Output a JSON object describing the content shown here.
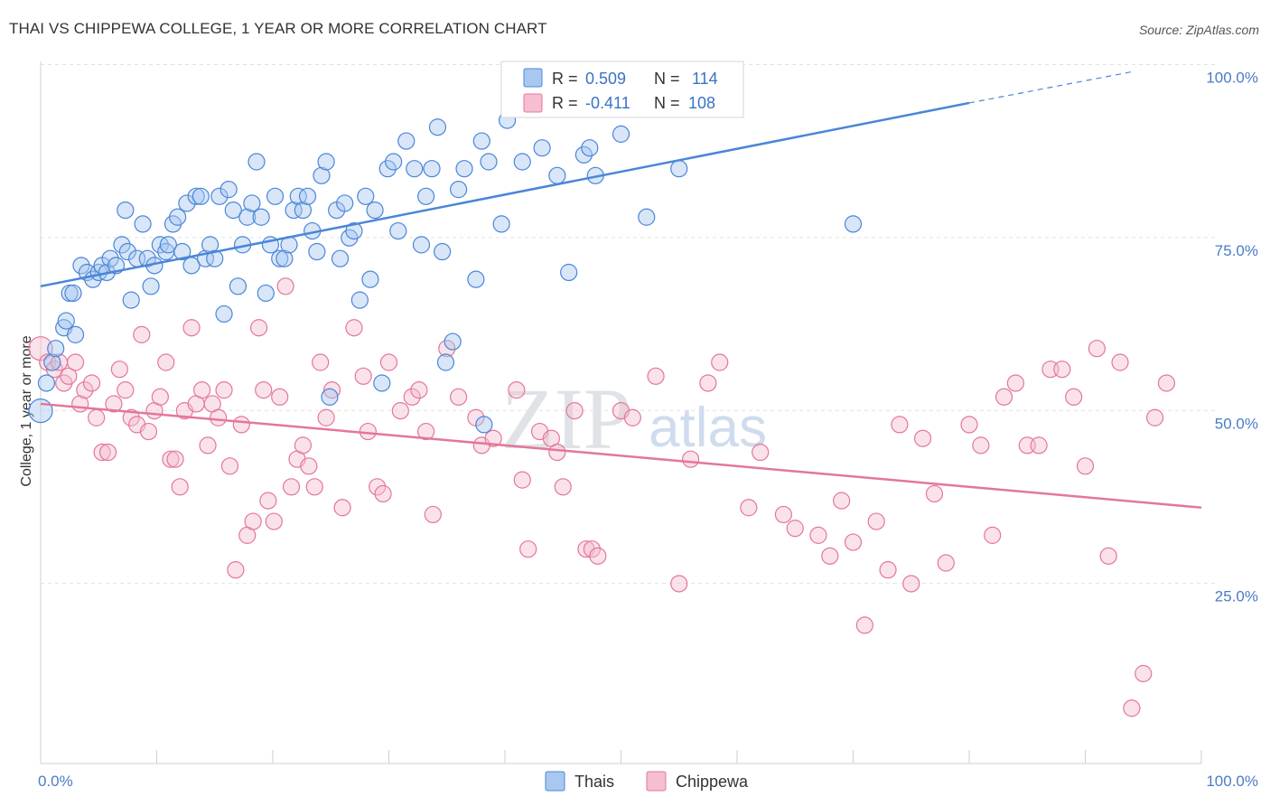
{
  "title": "THAI VS CHIPPEWA COLLEGE, 1 YEAR OR MORE CORRELATION CHART",
  "source": "Source: ZipAtlas.com",
  "watermark": {
    "zip": "ZIP",
    "atlas": "atlas"
  },
  "colors": {
    "thais": "#4a86d8",
    "thais_fill": "#a9c8ef",
    "chippewa": "#e4769b",
    "chippewa_fill": "#f5bfd1",
    "tick": "#4a7cc7"
  },
  "legend": {
    "rows": [
      {
        "r_label": "R =",
        "r_value": "0.509",
        "n_label": "N =",
        "n_value": "114"
      },
      {
        "r_label": "R =",
        "r_value": "-0.411",
        "n_label": "N =",
        "n_value": "108"
      }
    ]
  },
  "chart_data": {
    "type": "scatter",
    "ylabel": "College, 1 year or more",
    "x_tick_labels": [
      "0.0%",
      "100.0%"
    ],
    "y_tick_labels": [
      "100.0%",
      "75.0%",
      "50.0%",
      "25.0%"
    ],
    "xlim": [
      0,
      100
    ],
    "ylim": [
      0,
      100
    ],
    "grid": true,
    "legend_placement": "top-center",
    "series": [
      {
        "name": "Thais",
        "trend": {
          "x0": 0,
          "y0": 69.0,
          "x1": 80,
          "y1": 95.5,
          "dashed_to": 94,
          "dashed_y": 100
        },
        "points": [
          [
            0,
            51
          ],
          [
            0.5,
            55
          ],
          [
            1,
            58
          ],
          [
            1.3,
            60
          ],
          [
            2,
            63
          ],
          [
            2.2,
            64
          ],
          [
            3,
            62
          ],
          [
            2.5,
            68
          ],
          [
            2.8,
            68
          ],
          [
            3.5,
            72
          ],
          [
            4,
            71
          ],
          [
            4.5,
            70
          ],
          [
            5,
            71
          ],
          [
            5.3,
            72
          ],
          [
            5.7,
            71
          ],
          [
            6,
            73
          ],
          [
            6.5,
            72
          ],
          [
            7,
            75
          ],
          [
            7.5,
            74
          ],
          [
            7.3,
            80
          ],
          [
            7.8,
            67
          ],
          [
            8.3,
            73
          ],
          [
            8.8,
            78
          ],
          [
            9.2,
            73
          ],
          [
            9.5,
            69
          ],
          [
            9.8,
            72
          ],
          [
            10.3,
            75
          ],
          [
            10.8,
            74
          ],
          [
            11,
            75
          ],
          [
            11.4,
            78
          ],
          [
            11.8,
            79
          ],
          [
            12.2,
            74
          ],
          [
            12.6,
            81
          ],
          [
            13,
            72
          ],
          [
            13.4,
            82
          ],
          [
            13.8,
            82
          ],
          [
            14.2,
            73
          ],
          [
            14.6,
            75
          ],
          [
            15,
            73
          ],
          [
            15.4,
            82
          ],
          [
            15.8,
            65
          ],
          [
            16.2,
            83
          ],
          [
            16.6,
            80
          ],
          [
            17,
            69
          ],
          [
            17.4,
            75
          ],
          [
            17.8,
            79
          ],
          [
            18.2,
            81
          ],
          [
            18.6,
            87
          ],
          [
            19,
            79
          ],
          [
            19.4,
            68
          ],
          [
            19.8,
            75
          ],
          [
            20.2,
            82
          ],
          [
            20.6,
            73
          ],
          [
            21,
            73
          ],
          [
            21.4,
            75
          ],
          [
            21.8,
            80
          ],
          [
            22.2,
            82
          ],
          [
            22.6,
            80
          ],
          [
            23,
            82
          ],
          [
            23.4,
            77
          ],
          [
            23.8,
            74
          ],
          [
            24.2,
            85
          ],
          [
            24.6,
            87
          ],
          [
            24.9,
            53
          ],
          [
            25.5,
            80
          ],
          [
            25.8,
            73
          ],
          [
            26.2,
            81
          ],
          [
            26.6,
            76
          ],
          [
            27,
            77
          ],
          [
            27.5,
            67
          ],
          [
            28,
            82
          ],
          [
            28.4,
            70
          ],
          [
            28.8,
            80
          ],
          [
            29.4,
            55
          ],
          [
            29.9,
            86
          ],
          [
            30.4,
            87
          ],
          [
            30.8,
            77
          ],
          [
            31.5,
            90
          ],
          [
            32.2,
            86
          ],
          [
            32.8,
            75
          ],
          [
            33.2,
            82
          ],
          [
            33.7,
            86
          ],
          [
            34.2,
            92
          ],
          [
            34.6,
            74
          ],
          [
            34.9,
            58
          ],
          [
            35.5,
            61
          ],
          [
            36,
            83
          ],
          [
            36.5,
            86
          ],
          [
            37.5,
            70
          ],
          [
            38,
            90
          ],
          [
            38.2,
            49
          ],
          [
            38.6,
            87
          ],
          [
            39.7,
            78
          ],
          [
            40.2,
            93
          ],
          [
            41.5,
            87
          ],
          [
            43.2,
            89
          ],
          [
            44.5,
            85
          ],
          [
            45.5,
            71
          ],
          [
            46.8,
            88
          ],
          [
            47.3,
            89
          ],
          [
            47.8,
            85
          ],
          [
            50,
            91
          ],
          [
            51,
            100
          ],
          [
            52.2,
            79
          ],
          [
            55,
            86
          ],
          [
            70,
            78
          ]
        ]
      },
      {
        "name": "Chippewa",
        "trend": {
          "x0": 0,
          "y0": 52.0,
          "x1": 100,
          "y1": 37.0
        },
        "points": [
          [
            0,
            60
          ],
          [
            0.6,
            58
          ],
          [
            1.2,
            57
          ],
          [
            1.6,
            58
          ],
          [
            2,
            55
          ],
          [
            2.4,
            56
          ],
          [
            3,
            58
          ],
          [
            3.4,
            52
          ],
          [
            3.8,
            54
          ],
          [
            4.4,
            55
          ],
          [
            4.8,
            50
          ],
          [
            5.3,
            45
          ],
          [
            5.8,
            45
          ],
          [
            6.3,
            52
          ],
          [
            6.8,
            57
          ],
          [
            7.3,
            54
          ],
          [
            7.8,
            50
          ],
          [
            8.3,
            49
          ],
          [
            8.7,
            62
          ],
          [
            9.3,
            48
          ],
          [
            9.8,
            51
          ],
          [
            10.3,
            53
          ],
          [
            10.8,
            58
          ],
          [
            11.2,
            44
          ],
          [
            11.6,
            44
          ],
          [
            12,
            40
          ],
          [
            12.4,
            51
          ],
          [
            13,
            63
          ],
          [
            13.4,
            52
          ],
          [
            13.9,
            54
          ],
          [
            14.4,
            46
          ],
          [
            14.8,
            52
          ],
          [
            15.3,
            50
          ],
          [
            15.8,
            54
          ],
          [
            16.3,
            43
          ],
          [
            16.8,
            28
          ],
          [
            17.3,
            49
          ],
          [
            17.8,
            33
          ],
          [
            18.3,
            35
          ],
          [
            18.8,
            63
          ],
          [
            19.2,
            54
          ],
          [
            19.6,
            38
          ],
          [
            20.1,
            35
          ],
          [
            20.6,
            53
          ],
          [
            21.1,
            69
          ],
          [
            21.6,
            40
          ],
          [
            22.1,
            44
          ],
          [
            22.6,
            46
          ],
          [
            23.1,
            43
          ],
          [
            23.6,
            40
          ],
          [
            24.1,
            58
          ],
          [
            24.6,
            50
          ],
          [
            25.1,
            54
          ],
          [
            26,
            37
          ],
          [
            27,
            63
          ],
          [
            27.8,
            56
          ],
          [
            28.2,
            48
          ],
          [
            29,
            40
          ],
          [
            29.5,
            39
          ],
          [
            30,
            58
          ],
          [
            31,
            51
          ],
          [
            32,
            53
          ],
          [
            32.6,
            54
          ],
          [
            33.2,
            48
          ],
          [
            33.8,
            36
          ],
          [
            35,
            60
          ],
          [
            36,
            53
          ],
          [
            37.5,
            50
          ],
          [
            38,
            46
          ],
          [
            39,
            47
          ],
          [
            41,
            54
          ],
          [
            41.5,
            41
          ],
          [
            42,
            31
          ],
          [
            43,
            48
          ],
          [
            44,
            47
          ],
          [
            44.5,
            45
          ],
          [
            45,
            40
          ],
          [
            46,
            51
          ],
          [
            47,
            31
          ],
          [
            47.5,
            31
          ],
          [
            48,
            30
          ],
          [
            50,
            51
          ],
          [
            51,
            50
          ],
          [
            53,
            56
          ],
          [
            55,
            26
          ],
          [
            56,
            44
          ],
          [
            57.5,
            55
          ],
          [
            58.5,
            58
          ],
          [
            61,
            37
          ],
          [
            62,
            45
          ],
          [
            64,
            36
          ],
          [
            65,
            34
          ],
          [
            67,
            33
          ],
          [
            68,
            30
          ],
          [
            69,
            38
          ],
          [
            70,
            32
          ],
          [
            71,
            20
          ],
          [
            72,
            35
          ],
          [
            73,
            28
          ],
          [
            74,
            49
          ],
          [
            75,
            26
          ],
          [
            76,
            47
          ],
          [
            77,
            39
          ],
          [
            78,
            29
          ],
          [
            80,
            49
          ],
          [
            81,
            46
          ],
          [
            82,
            33
          ],
          [
            83,
            53
          ],
          [
            84,
            55
          ],
          [
            85,
            46
          ],
          [
            86,
            46
          ],
          [
            87,
            57
          ],
          [
            88,
            57
          ],
          [
            89,
            53
          ],
          [
            90,
            43
          ],
          [
            91,
            60
          ],
          [
            92,
            30
          ],
          [
            93,
            58
          ],
          [
            94,
            8
          ],
          [
            95,
            13
          ],
          [
            96,
            50
          ],
          [
            97,
            55
          ]
        ]
      }
    ]
  }
}
